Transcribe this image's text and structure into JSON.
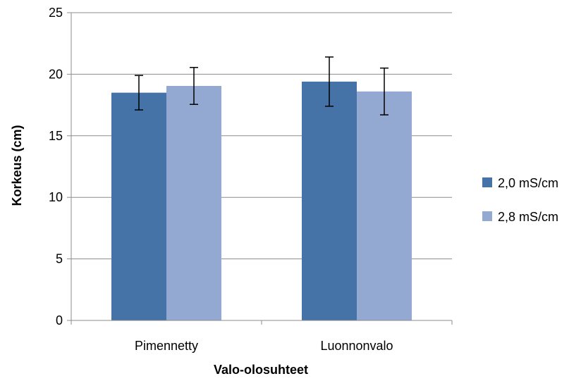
{
  "chart_data": {
    "type": "bar",
    "title": "",
    "xlabel": "Valo-olosuhteet",
    "ylabel": "Korkeus (cm)",
    "categories": [
      "Pimennetty",
      "Luonnonvalo"
    ],
    "ylim": [
      0,
      25
    ],
    "yticks": [
      0,
      5,
      10,
      15,
      20,
      25
    ],
    "grid": true,
    "legend_position": "right",
    "series": [
      {
        "name": "2,0 mS/cm",
        "color": "#4572A7",
        "values": [
          18.5,
          19.4
        ],
        "errors": [
          1.4,
          2.0
        ]
      },
      {
        "name": "2,8 mS/cm",
        "color": "#93A9D1",
        "values": [
          19.05,
          18.6
        ],
        "errors": [
          1.5,
          1.9
        ]
      }
    ]
  }
}
